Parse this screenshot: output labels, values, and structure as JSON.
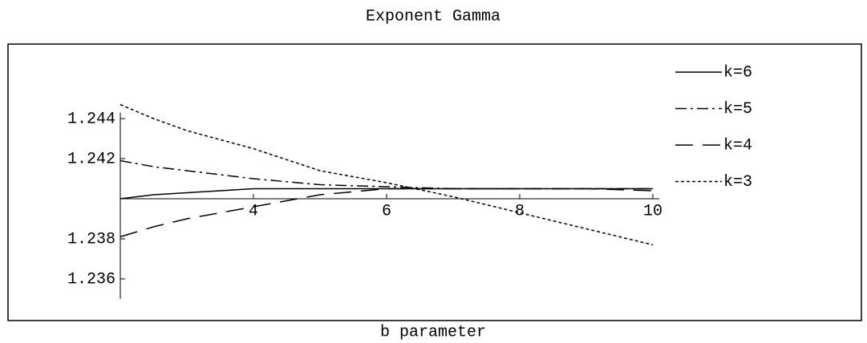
{
  "chart_data": {
    "type": "line",
    "title": "Exponent Gamma",
    "x_label": "b parameter",
    "x": [
      2,
      2.5,
      3,
      4,
      5,
      6,
      7,
      8,
      9,
      10
    ],
    "series": [
      {
        "name": "k=6",
        "color": "#000000",
        "dash": "none",
        "values": [
          1.24,
          1.2402,
          1.2403,
          1.2405,
          1.2405,
          1.2405,
          1.2405,
          1.2405,
          1.2405,
          1.2405
        ]
      },
      {
        "name": "k=5",
        "color": "#000000",
        "dash": "14 5 3 5",
        "values": [
          1.2419,
          1.2416,
          1.2414,
          1.241,
          1.2407,
          1.2406,
          1.2405,
          1.2405,
          1.2405,
          1.2405
        ]
      },
      {
        "name": "k=4",
        "color": "#000000",
        "dash": "22 12",
        "values": [
          1.2381,
          1.2386,
          1.239,
          1.2396,
          1.2402,
          1.2405,
          1.2405,
          1.2405,
          1.2405,
          1.2404
        ]
      },
      {
        "name": "k=3",
        "color": "#000000",
        "dash": "4 3",
        "values": [
          1.2447,
          1.244,
          1.2434,
          1.2425,
          1.2414,
          1.2408,
          1.2401,
          1.2393,
          1.2385,
          1.2377
        ]
      }
    ],
    "xlim": [
      2,
      10
    ],
    "ylim": [
      1.235,
      1.2443
    ],
    "xticks": [
      4,
      6,
      8,
      10
    ],
    "yticks": [
      1.236,
      1.238,
      1.242,
      1.244
    ],
    "axes_origin": [
      2,
      1.24
    ],
    "legend": "right"
  }
}
